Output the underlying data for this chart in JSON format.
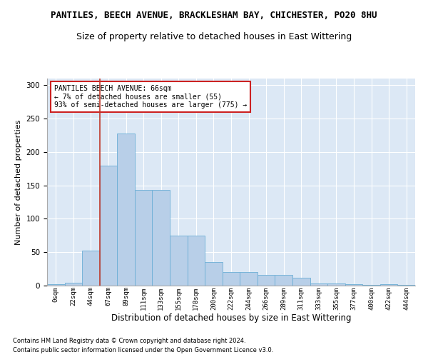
{
  "title": "PANTILES, BEECH AVENUE, BRACKLESHAM BAY, CHICHESTER, PO20 8HU",
  "subtitle": "Size of property relative to detached houses in East Wittering",
  "xlabel": "Distribution of detached houses by size in East Wittering",
  "ylabel": "Number of detached properties",
  "footnote1": "Contains HM Land Registry data © Crown copyright and database right 2024.",
  "footnote2": "Contains public sector information licensed under the Open Government Licence v3.0.",
  "annotation_line1": "PANTILES BEECH AVENUE: 66sqm",
  "annotation_line2": "← 7% of detached houses are smaller (55)",
  "annotation_line3": "93% of semi-detached houses are larger (775) →",
  "bar_values": [
    2,
    4,
    52,
    180,
    228,
    143,
    143,
    75,
    75,
    35,
    20,
    20,
    16,
    16,
    12,
    3,
    3,
    2,
    1,
    2,
    1
  ],
  "bar_color": "#b8cfe8",
  "bar_edge_color": "#6baed6",
  "bin_labels": [
    "0sqm",
    "22sqm",
    "44sqm",
    "67sqm",
    "89sqm",
    "111sqm",
    "133sqm",
    "155sqm",
    "178sqm",
    "200sqm",
    "222sqm",
    "244sqm",
    "266sqm",
    "289sqm",
    "311sqm",
    "333sqm",
    "355sqm",
    "377sqm",
    "400sqm",
    "422sqm",
    "444sqm"
  ],
  "subject_bin_index": 3,
  "vline_color": "#c0392b",
  "ylim": [
    0,
    310
  ],
  "bg_color": "#dce8f5",
  "title_fontsize": 9,
  "subtitle_fontsize": 9,
  "xlabel_fontsize": 8.5,
  "ylabel_fontsize": 8,
  "tick_fontsize": 6.5,
  "annotation_fontsize": 7,
  "footnote_fontsize": 6
}
